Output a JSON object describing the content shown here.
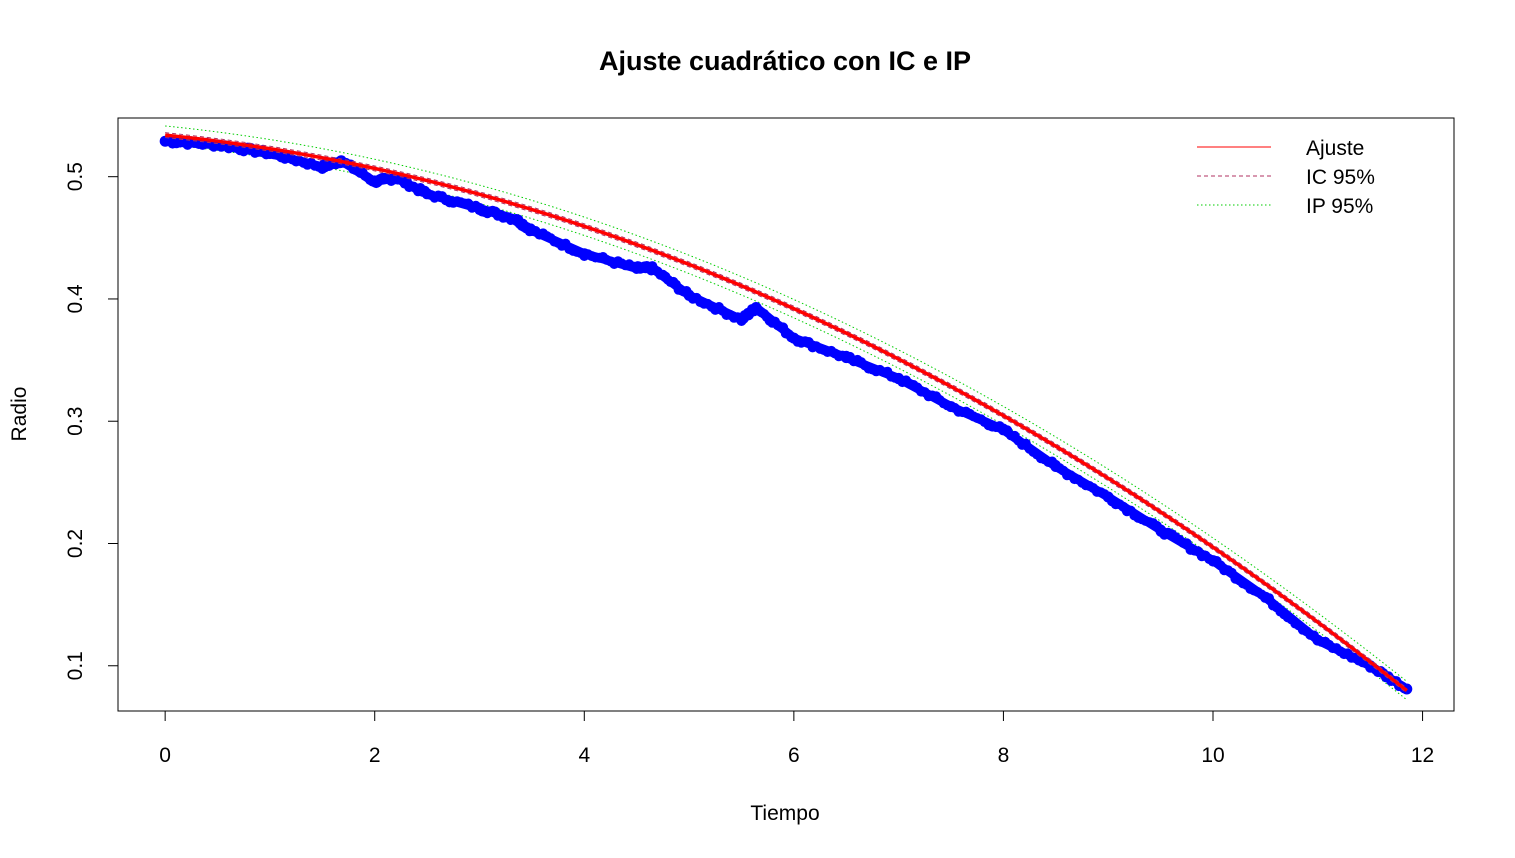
{
  "chart_data": {
    "type": "scatter",
    "title": "Ajuste cuadrático con IC e IP",
    "xlabel": "Tiempo",
    "ylabel": "Radio",
    "xlim": [
      -0.45,
      12.3
    ],
    "ylim": [
      0.063,
      0.548
    ],
    "x_ticks": [
      0,
      2,
      4,
      6,
      8,
      10,
      12
    ],
    "x_tick_labels": [
      "0",
      "2",
      "4",
      "6",
      "8",
      "10",
      "12"
    ],
    "y_ticks": [
      0.1,
      0.2,
      0.3,
      0.4,
      0.5
    ],
    "y_tick_labels": [
      "0.1",
      "0.2",
      "0.3",
      "0.4",
      "0.5"
    ],
    "grid": false,
    "legend_position": "top-right",
    "fit": {
      "model": "quadratic",
      "coefficients": {
        "intercept": 0.534,
        "linear": -0.0086,
        "quadratic": -0.00251
      },
      "x_range": [
        0,
        11.85
      ],
      "ci_halfwidth": 0.002,
      "pi_halfwidth": 0.0075
    },
    "series": [
      {
        "kind": "points",
        "color": "#0000ff",
        "x": [
          0,
          0.5,
          1,
          1.5,
          1.68,
          2,
          2.2,
          2.5,
          3,
          3.35,
          3.5,
          4,
          4.5,
          4.65,
          5,
          5.5,
          5.64,
          6,
          6.5,
          7,
          7.5,
          8,
          8.5,
          9,
          9.5,
          10,
          10.5,
          11,
          11.5,
          11.85
        ],
        "values": [
          0.529,
          0.526,
          0.519,
          0.508,
          0.513,
          0.496,
          0.499,
          0.486,
          0.474,
          0.465,
          0.456,
          0.437,
          0.425,
          0.425,
          0.403,
          0.383,
          0.393,
          0.368,
          0.352,
          0.335,
          0.312,
          0.293,
          0.263,
          0.238,
          0.211,
          0.186,
          0.156,
          0.121,
          0.1,
          0.081
        ]
      },
      {
        "name": "Ajuste",
        "kind": "fit",
        "color": "#ff0000",
        "line_style": "solid"
      },
      {
        "name": "IC 95%",
        "kind": "ci",
        "color": "#b03060",
        "line_style": "dashed"
      },
      {
        "name": "IP 95%",
        "kind": "pi",
        "color": "#00cd00",
        "line_style": "dotted"
      }
    ]
  }
}
